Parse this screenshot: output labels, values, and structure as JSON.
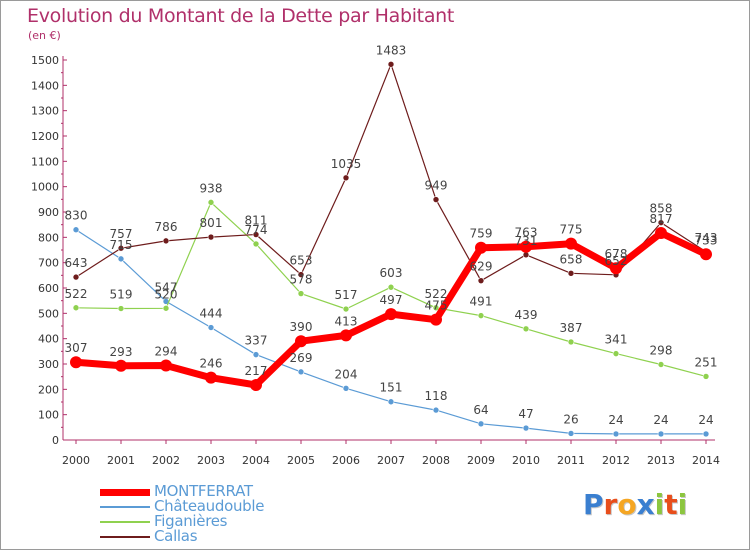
{
  "chart_data": {
    "type": "line",
    "title": "Evolution du Montant de la Dette par Habitant",
    "subtitle": "(en €)",
    "xlabel": "",
    "ylabel": "",
    "x": [
      "2000",
      "2001",
      "2002",
      "2003",
      "2004",
      "2005",
      "2006",
      "2007",
      "2008",
      "2009",
      "2010",
      "2011",
      "2012",
      "2013",
      "2014"
    ],
    "ylim": [
      0,
      1500
    ],
    "yticks": [
      0,
      100,
      200,
      300,
      400,
      500,
      600,
      700,
      800,
      900,
      1000,
      1100,
      1200,
      1300,
      1400,
      1500
    ],
    "grid": false,
    "legend_position": "bottom-left",
    "series": [
      {
        "name": "MONTFERRAT",
        "color": "#ff0000",
        "values": [
          307,
          293,
          294,
          246,
          217,
          390,
          413,
          497,
          475,
          759,
          763,
          775,
          678,
          817,
          733
        ],
        "labels": [
          "307",
          "293",
          "294",
          "246",
          "217",
          "390",
          "413",
          "497",
          "475",
          "759",
          "763",
          "775",
          "678",
          "817",
          "733"
        ]
      },
      {
        "name": "Châteaudouble",
        "color": "#5b9bd5",
        "values": [
          830,
          715,
          547,
          444,
          337,
          269,
          204,
          151,
          118,
          64,
          47,
          26,
          24,
          24,
          24
        ],
        "labels": [
          "830",
          "715",
          "547",
          "444",
          "337",
          "269",
          "204",
          "151",
          "118",
          "64",
          "47",
          "26",
          "24",
          "24",
          "24"
        ]
      },
      {
        "name": "Figanières",
        "color": "#8fd14f",
        "values": [
          522,
          519,
          520,
          938,
          774,
          578,
          517,
          603,
          522,
          491,
          439,
          387,
          341,
          298,
          251
        ],
        "labels": [
          "522",
          "519",
          "520",
          "938",
          "774",
          "578",
          "517",
          "603",
          "522",
          "491",
          "439",
          "387",
          "341",
          "298",
          "251"
        ]
      },
      {
        "name": "Callas",
        "color": "#6e1c1c",
        "values": [
          643,
          757,
          786,
          801,
          811,
          653,
          1035,
          1483,
          949,
          629,
          731,
          658,
          652,
          858,
          743
        ],
        "labels": [
          "643",
          "757",
          "786",
          "801",
          "811",
          "653",
          "1035",
          "1483",
          "949",
          "629",
          "731",
          "658",
          "652",
          "858",
          "743"
        ]
      }
    ]
  },
  "brand": {
    "letters": [
      {
        "ch": "P",
        "color": "#3a7fd0"
      },
      {
        "ch": "r",
        "color": "#e84e1b"
      },
      {
        "ch": "o",
        "color": "#f5a623"
      },
      {
        "ch": "x",
        "color": "#3a7fd0"
      },
      {
        "ch": "i",
        "color": "#8cc63f"
      },
      {
        "ch": "t",
        "color": "#e84e1b"
      },
      {
        "ch": "i",
        "color": "#8cc63f"
      }
    ]
  }
}
